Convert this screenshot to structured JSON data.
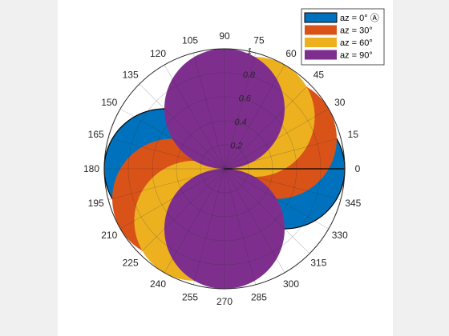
{
  "chart_data": {
    "type": "polar",
    "r_ticks": [
      0.2,
      0.4,
      0.6,
      0.8,
      1
    ],
    "r_tick_labels": [
      "0.2",
      "0.4",
      "0.6",
      "0.8",
      "1"
    ],
    "theta_ticks": [
      0,
      15,
      30,
      45,
      60,
      75,
      90,
      105,
      120,
      135,
      150,
      165,
      180,
      195,
      210,
      225,
      240,
      255,
      270,
      285,
      300,
      315,
      330,
      345
    ],
    "theta_tick_labels": [
      "0",
      "15",
      "30",
      "45",
      "60",
      "75",
      "90",
      "105",
      "120",
      "135",
      "150",
      "165",
      "180",
      "195",
      "210",
      "225",
      "240",
      "255",
      "270",
      "285",
      "300",
      "315",
      "330",
      "345"
    ],
    "rlim": [
      0,
      1
    ],
    "grid": true,
    "legend_position": "top-right",
    "pattern": "r = |cos(theta - az)| (figure-eight lobes)",
    "series": [
      {
        "name": "az = 0° Ⓐ",
        "az": 0,
        "color": "#0072BD",
        "peak_r": 1.0
      },
      {
        "name": "az = 30°",
        "az": 30,
        "color": "#D95319",
        "peak_r": 1.0
      },
      {
        "name": "az = 60°",
        "az": 60,
        "color": "#EDB120",
        "peak_r": 1.0
      },
      {
        "name": "az = 90°",
        "az": 90,
        "color": "#7E2F8E",
        "peak_r": 1.0
      }
    ]
  },
  "legend": {
    "items": [
      {
        "label": "az = 0° Ⓐ",
        "color": "#0072BD"
      },
      {
        "label": "az = 30°",
        "color": "#D95319"
      },
      {
        "label": "az = 60°",
        "color": "#EDB120"
      },
      {
        "label": "az = 90°",
        "color": "#7E2F8E"
      }
    ]
  }
}
